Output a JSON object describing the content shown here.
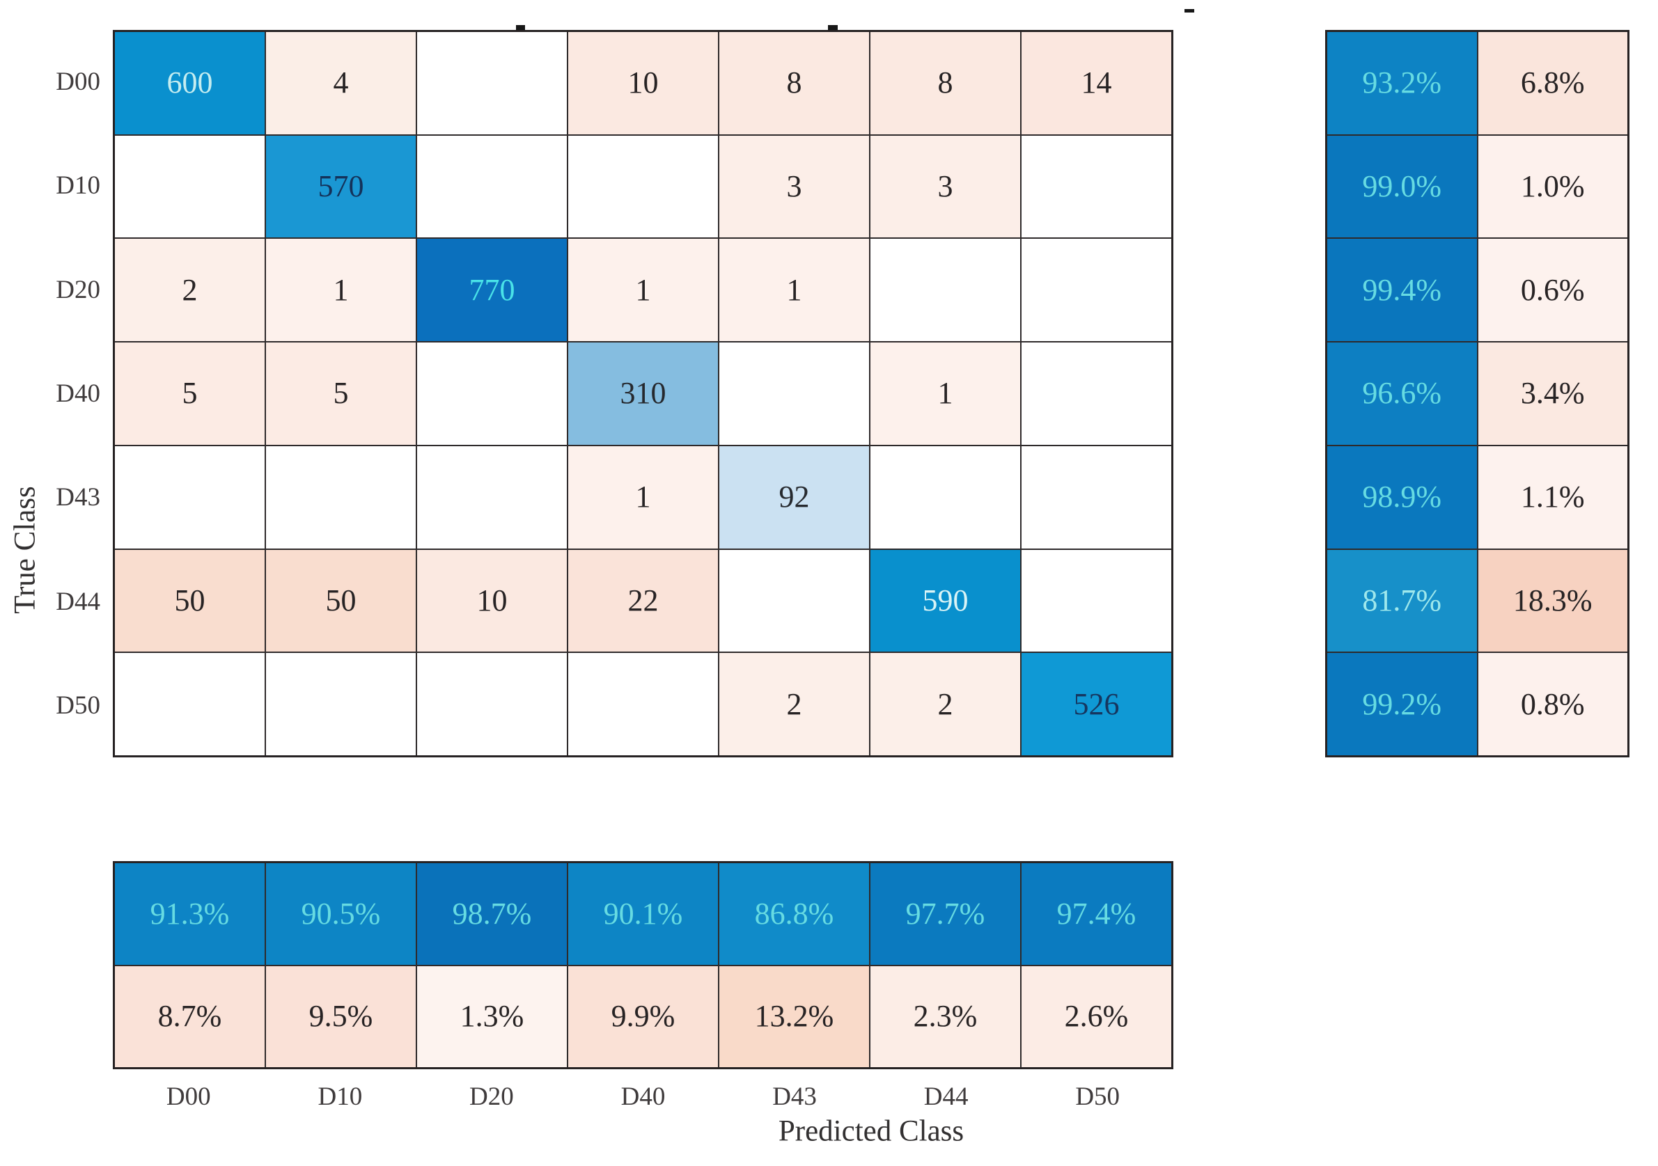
{
  "axes": {
    "xlabel": "Predicted Class",
    "ylabel": "True Class"
  },
  "colors": {
    "background": "#ffffff",
    "grid_line": "#2e2a2b",
    "outer_border": "#262223",
    "tick_label_text": "#3f3b3c",
    "axis_label_text": "#323031",
    "dark_cell_text": "#272324",
    "navy_cell_text": "#14325a",
    "cyan_cell_text": "#66dbe2",
    "pale_cyan_cell_text": "#c9eef1",
    "diagonal_blue_strong": "#0b70bd",
    "diagonal_blue_mid": "#0a90ce",
    "diagonal_blue_light": "#85bde0",
    "diagonal_blue_palest": "#cbe1f2",
    "offdiagonal_pink_light": "#fdf1ec",
    "offdiagonal_pink_deep": "#f7d2c1"
  },
  "chart_data": {
    "type": "heatmap",
    "subtype": "confusion-matrix-with-summaries",
    "title": "",
    "xlabel": "Predicted Class",
    "ylabel": "True Class",
    "classes": [
      "D00",
      "D10",
      "D20",
      "D40",
      "D43",
      "D44",
      "D50"
    ],
    "matrix": [
      [
        600,
        4,
        0,
        10,
        8,
        8,
        14
      ],
      [
        0,
        570,
        0,
        0,
        3,
        3,
        0
      ],
      [
        2,
        1,
        770,
        1,
        1,
        0,
        0
      ],
      [
        5,
        5,
        0,
        310,
        0,
        1,
        0
      ],
      [
        0,
        0,
        0,
        1,
        92,
        0,
        0
      ],
      [
        50,
        50,
        10,
        22,
        0,
        590,
        0
      ],
      [
        0,
        0,
        0,
        0,
        2,
        2,
        526
      ]
    ],
    "row_summary": {
      "position": "right",
      "correct_pct": [
        "93.2%",
        "99.0%",
        "99.4%",
        "96.6%",
        "98.9%",
        "81.7%",
        "99.2%"
      ],
      "incorrect_pct": [
        "6.8%",
        "1.0%",
        "0.6%",
        "3.4%",
        "1.1%",
        "18.3%",
        "0.8%"
      ]
    },
    "col_summary": {
      "position": "bottom",
      "correct_pct": [
        "91.3%",
        "90.5%",
        "98.7%",
        "90.1%",
        "86.8%",
        "97.7%",
        "97.4%"
      ],
      "incorrect_pct": [
        "8.7%",
        "9.5%",
        "1.3%",
        "9.9%",
        "13.2%",
        "2.3%",
        "2.6%"
      ]
    },
    "cells": {
      "matrix": [
        [
          {
            "text": "600",
            "bg": "#0a90ce",
            "fg": "#c4edf0"
          },
          {
            "text": "4",
            "bg": "#fbeee7"
          },
          {
            "text": "",
            "bg": "#ffffff"
          },
          {
            "text": "10",
            "bg": "#fbe9e1"
          },
          {
            "text": "8",
            "bg": "#fbe9e1"
          },
          {
            "text": "8",
            "bg": "#fbe9e1"
          },
          {
            "text": "14",
            "bg": "#fbe7df"
          }
        ],
        [
          {
            "text": "",
            "bg": "#ffffff"
          },
          {
            "text": "570",
            "bg": "#1a97d3",
            "fg": "#14325a"
          },
          {
            "text": "",
            "bg": "#ffffff"
          },
          {
            "text": "",
            "bg": "#ffffff"
          },
          {
            "text": "3",
            "bg": "#fceee8"
          },
          {
            "text": "3",
            "bg": "#fceee8"
          },
          {
            "text": "",
            "bg": "#ffffff"
          }
        ],
        [
          {
            "text": "2",
            "bg": "#fcefe9"
          },
          {
            "text": "1",
            "bg": "#fdf1ec"
          },
          {
            "text": "770",
            "bg": "#0b70bd",
            "fg": "#49e2e8"
          },
          {
            "text": "1",
            "bg": "#fdf1ec"
          },
          {
            "text": "1",
            "bg": "#fdf1ec"
          },
          {
            "text": "",
            "bg": "#ffffff"
          },
          {
            "text": "",
            "bg": "#ffffff"
          }
        ],
        [
          {
            "text": "5",
            "bg": "#fcebe4"
          },
          {
            "text": "5",
            "bg": "#fcebe4"
          },
          {
            "text": "",
            "bg": "#ffffff"
          },
          {
            "text": "310",
            "bg": "#85bde0",
            "fg": "#26292e"
          },
          {
            "text": "",
            "bg": "#ffffff"
          },
          {
            "text": "1",
            "bg": "#fdf1ec"
          },
          {
            "text": "",
            "bg": "#ffffff"
          }
        ],
        [
          {
            "text": "",
            "bg": "#ffffff"
          },
          {
            "text": "",
            "bg": "#ffffff"
          },
          {
            "text": "",
            "bg": "#ffffff"
          },
          {
            "text": "1",
            "bg": "#fdf1ec"
          },
          {
            "text": "92",
            "bg": "#cbe1f2",
            "fg": "#26292e"
          },
          {
            "text": "",
            "bg": "#ffffff"
          },
          {
            "text": "",
            "bg": "#ffffff"
          }
        ],
        [
          {
            "text": "50",
            "bg": "#f9ddcf"
          },
          {
            "text": "50",
            "bg": "#f9ddcf"
          },
          {
            "text": "10",
            "bg": "#fbe9e1"
          },
          {
            "text": "22",
            "bg": "#fae3d9"
          },
          {
            "text": "",
            "bg": "#ffffff"
          },
          {
            "text": "590",
            "bg": "#0990cd",
            "fg": "#d9f4f6"
          },
          {
            "text": "",
            "bg": "#ffffff"
          }
        ],
        [
          {
            "text": "",
            "bg": "#ffffff"
          },
          {
            "text": "",
            "bg": "#ffffff"
          },
          {
            "text": "",
            "bg": "#ffffff"
          },
          {
            "text": "",
            "bg": "#ffffff"
          },
          {
            "text": "2",
            "bg": "#fcefe9"
          },
          {
            "text": "2",
            "bg": "#fcefe9"
          },
          {
            "text": "526",
            "bg": "#0f99d5",
            "fg": "#16365f"
          }
        ]
      ],
      "row_summary": [
        [
          {
            "text": "93.2%",
            "bg": "#0d83c4",
            "fg": "#66dbe2"
          },
          {
            "text": "6.8%",
            "bg": "#fae5dc"
          }
        ],
        [
          {
            "text": "99.0%",
            "bg": "#0a77bd",
            "fg": "#66dbe2"
          },
          {
            "text": "1.0%",
            "bg": "#fdf1ed"
          }
        ],
        [
          {
            "text": "99.4%",
            "bg": "#0a76bd",
            "fg": "#66dbe2"
          },
          {
            "text": "0.6%",
            "bg": "#fdf2ee"
          }
        ],
        [
          {
            "text": "96.6%",
            "bg": "#0d7fc2",
            "fg": "#66dbe2"
          },
          {
            "text": "3.4%",
            "bg": "#fbe9e1"
          }
        ],
        [
          {
            "text": "98.9%",
            "bg": "#0a78be",
            "fg": "#66dbe2"
          },
          {
            "text": "1.1%",
            "bg": "#fdf2ee"
          }
        ],
        [
          {
            "text": "81.7%",
            "bg": "#1790c9",
            "fg": "#9fe8ec"
          },
          {
            "text": "18.3%",
            "bg": "#f7d2c1"
          }
        ],
        [
          {
            "text": "99.2%",
            "bg": "#0a78be",
            "fg": "#66dbe2"
          },
          {
            "text": "0.8%",
            "bg": "#fdf1ed"
          }
        ]
      ],
      "col_summary": [
        [
          {
            "text": "91.3%",
            "bg": "#0d84c5",
            "fg": "#66dbe2"
          },
          {
            "text": "90.5%",
            "bg": "#0d85c5",
            "fg": "#66dbe2"
          },
          {
            "text": "98.7%",
            "bg": "#0a72ba",
            "fg": "#66dbe2"
          },
          {
            "text": "90.1%",
            "bg": "#0d85c5",
            "fg": "#66dbe2"
          },
          {
            "text": "86.8%",
            "bg": "#108bc9",
            "fg": "#66dbe2"
          },
          {
            "text": "97.7%",
            "bg": "#0b7abf",
            "fg": "#66dbe2"
          },
          {
            "text": "97.4%",
            "bg": "#0b7bc0",
            "fg": "#66dbe2"
          }
        ],
        [
          {
            "text": "8.7%",
            "bg": "#fae2d8"
          },
          {
            "text": "9.5%",
            "bg": "#fae1d7"
          },
          {
            "text": "1.3%",
            "bg": "#fdf3ef"
          },
          {
            "text": "9.9%",
            "bg": "#fae1d6"
          },
          {
            "text": "13.2%",
            "bg": "#f9dac9"
          },
          {
            "text": "2.3%",
            "bg": "#fcede6"
          },
          {
            "text": "2.6%",
            "bg": "#fcece5"
          }
        ]
      ]
    },
    "layout": {
      "grid_on": true,
      "matrix_rows": 7,
      "matrix_cols": 7,
      "row_summary_cols": 2,
      "col_summary_rows": 2
    }
  }
}
